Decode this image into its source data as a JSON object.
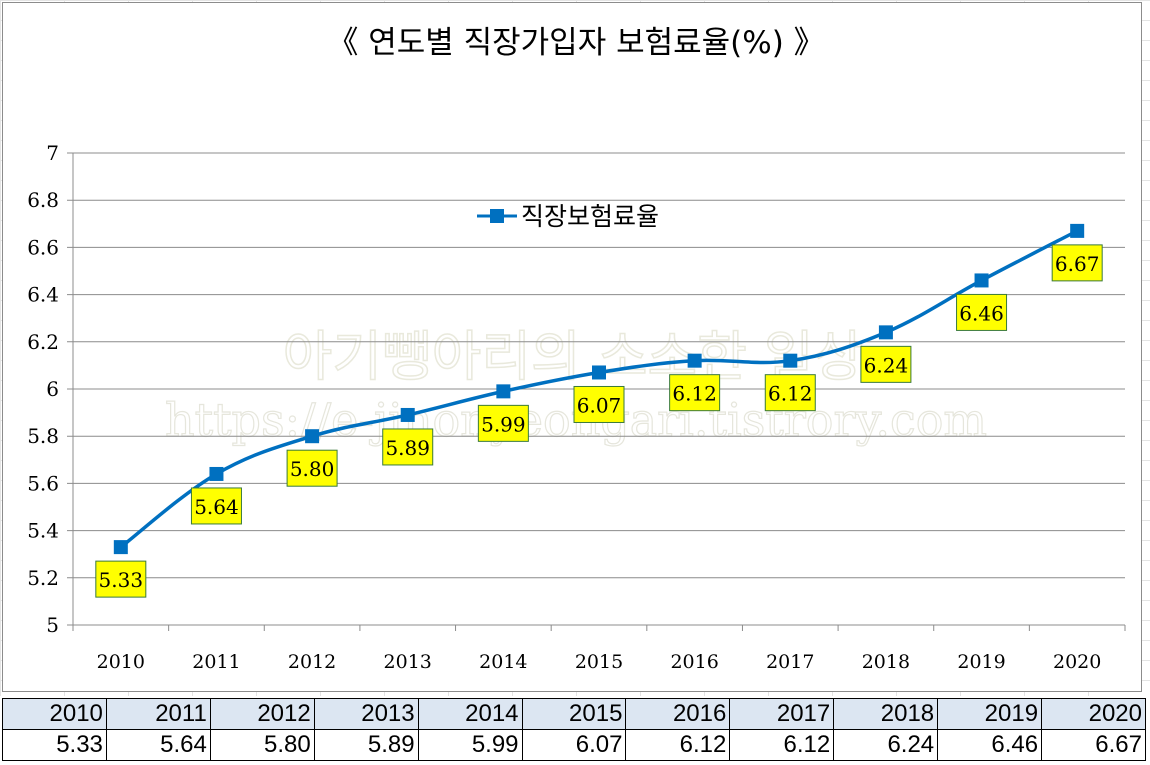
{
  "chart_data": {
    "type": "line",
    "title": "《 연도별 직장가입자 보험료율(%) 》",
    "categories": [
      "2010",
      "2011",
      "2012",
      "2013",
      "2014",
      "2015",
      "2016",
      "2017",
      "2018",
      "2019",
      "2020"
    ],
    "series": [
      {
        "name": "직장보험료율",
        "values": [
          5.33,
          5.64,
          5.8,
          5.89,
          5.99,
          6.07,
          6.12,
          6.12,
          6.24,
          6.46,
          6.67
        ],
        "labels": [
          "5.33",
          "5.64",
          "5.80",
          "5.89",
          "5.99",
          "6.07",
          "6.12",
          "6.12",
          "6.24",
          "6.46",
          "6.67"
        ]
      }
    ],
    "ylim": [
      5,
      7
    ],
    "yticks": [
      "5",
      "5.2",
      "5.4",
      "5.6",
      "5.8",
      "6",
      "6.2",
      "6.4",
      "6.6",
      "6.8",
      "7"
    ],
    "grid": true,
    "legend_position": "top-center",
    "colors": {
      "series": "#0070c0",
      "label_fill": "#ffff00",
      "label_border": "#3a7a3a",
      "grid": "#8c8c8c"
    }
  },
  "watermark": {
    "line1": "아기뺑아리의 소소한 일상",
    "line2": "https://e-jinonyeongari.tistrory.com"
  },
  "table": {
    "years": [
      "2010",
      "2011",
      "2012",
      "2013",
      "2014",
      "2015",
      "2016",
      "2017",
      "2018",
      "2019",
      "2020"
    ],
    "rates": [
      "5.33",
      "5.64",
      "5.80",
      "5.89",
      "5.99",
      "6.07",
      "6.12",
      "6.12",
      "6.24",
      "6.46",
      "6.67"
    ]
  }
}
